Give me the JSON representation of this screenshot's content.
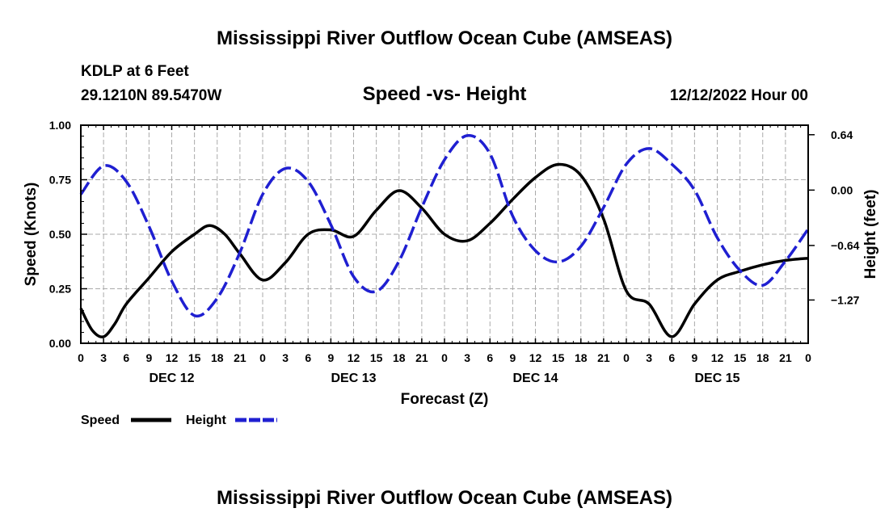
{
  "page": {
    "title": "Mississippi River Outflow Ocean Cube (AMSEAS)",
    "footer_title": "Mississippi River Outflow Ocean Cube (AMSEAS)",
    "station": "KDLP at 6 Feet",
    "coords": "29.1210N  89.5470W",
    "subtitle": "Speed -vs- Height",
    "date": "12/12/2022 Hour 00"
  },
  "chart_data": {
    "type": "line",
    "title": "Speed -vs- Height",
    "xlabel": "Forecast (Z)",
    "ylabel": "Speed (Knots)",
    "y2label": "Height (feet)",
    "x_unit": "hours from 12/12/2022 00Z",
    "xlim": [
      0,
      96
    ],
    "ylim": [
      0,
      1
    ],
    "y2lim": [
      -1.77,
      0.75
    ],
    "x_ticks": [
      0,
      3,
      6,
      9,
      12,
      15,
      18,
      21,
      24,
      27,
      30,
      33,
      36,
      39,
      42,
      45,
      48,
      51,
      54,
      57,
      60,
      63,
      66,
      69,
      72,
      75,
      78,
      81,
      84,
      87,
      90,
      93,
      96
    ],
    "x_tick_labels": [
      "0",
      "3",
      "6",
      "9",
      "12",
      "15",
      "18",
      "21",
      "0",
      "3",
      "6",
      "9",
      "12",
      "15",
      "18",
      "21",
      "0",
      "3",
      "6",
      "9",
      "12",
      "15",
      "18",
      "21",
      "0",
      "3",
      "6",
      "9",
      "12",
      "15",
      "18",
      "21",
      "0"
    ],
    "y_ticks": [
      0,
      0.25,
      0.5,
      0.75,
      1.0
    ],
    "y_tick_labels": [
      "0.00",
      "0.25",
      "0.50",
      "0.75",
      "1.00"
    ],
    "y2_ticks": [
      0.64,
      0.0,
      -0.64,
      -1.27
    ],
    "y2_tick_labels": [
      "0.64",
      "0.00",
      "−0.64",
      "−1.27"
    ],
    "day_labels": [
      {
        "x": 12,
        "label": "DEC 12"
      },
      {
        "x": 36,
        "label": "DEC 13"
      },
      {
        "x": 60,
        "label": "DEC 14"
      },
      {
        "x": 84,
        "label": "DEC 15"
      }
    ],
    "grid": true,
    "legend_position": "bottom-left",
    "series": [
      {
        "name": "Speed",
        "axis": "left",
        "color": "#000000",
        "dash": "solid",
        "x": [
          0,
          1.5,
          3,
          4.5,
          6,
          9,
          12,
          15,
          17,
          19,
          21,
          24,
          27,
          30,
          33,
          36,
          39,
          42,
          45,
          48,
          51,
          54,
          57,
          60,
          63,
          66,
          69,
          72,
          75,
          78,
          81,
          84,
          87,
          90,
          93,
          96
        ],
        "values": [
          0.16,
          0.06,
          0.03,
          0.09,
          0.18,
          0.3,
          0.42,
          0.5,
          0.54,
          0.5,
          0.41,
          0.29,
          0.37,
          0.5,
          0.52,
          0.49,
          0.61,
          0.7,
          0.62,
          0.5,
          0.47,
          0.55,
          0.66,
          0.76,
          0.82,
          0.77,
          0.57,
          0.24,
          0.18,
          0.03,
          0.18,
          0.29,
          0.33,
          0.36,
          0.38,
          0.39
        ]
      },
      {
        "name": "Height",
        "axis": "right",
        "color": "#1f1fd1",
        "dash": "dashed",
        "x": [
          0,
          3,
          6,
          9,
          12,
          15,
          18,
          21,
          24,
          27,
          30,
          33,
          36,
          39,
          42,
          45,
          48,
          51,
          54,
          57,
          60,
          63,
          66,
          69,
          72,
          75,
          78,
          81,
          84,
          87,
          90,
          93,
          96
        ],
        "values": [
          -0.05,
          0.28,
          0.1,
          -0.42,
          -1.05,
          -1.45,
          -1.25,
          -0.72,
          -0.05,
          0.25,
          0.1,
          -0.4,
          -1.0,
          -1.17,
          -0.82,
          -0.2,
          0.35,
          0.63,
          0.42,
          -0.3,
          -0.7,
          -0.83,
          -0.65,
          -0.2,
          0.3,
          0.48,
          0.3,
          0.0,
          -0.55,
          -0.93,
          -1.1,
          -0.82,
          -0.45
        ]
      }
    ]
  },
  "legend": {
    "speed_label": "Speed",
    "height_label": "Height"
  }
}
